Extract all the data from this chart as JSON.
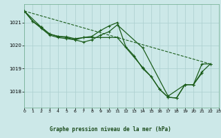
{
  "background_color": "#cce8e8",
  "plot_bg_color": "#cce8e8",
  "grid_color": "#aacece",
  "line_color": "#1a5c1a",
  "title": "Graphe pression niveau de la mer (hPa)",
  "xlim": [
    0,
    23
  ],
  "ylim": [
    1017.3,
    1021.8
  ],
  "yticks": [
    1018,
    1019,
    1020,
    1021
  ],
  "xticks": [
    0,
    1,
    2,
    3,
    4,
    5,
    6,
    7,
    8,
    9,
    10,
    11,
    12,
    13,
    14,
    15,
    16,
    17,
    18,
    19,
    20,
    21,
    22,
    23
  ],
  "series": [
    {
      "x": [
        0,
        22
      ],
      "y": [
        1021.5,
        1019.2
      ],
      "marker": false,
      "style": "--",
      "lw": 0.8
    },
    {
      "x": [
        0,
        1,
        2,
        3,
        4,
        5,
        6,
        7,
        8,
        9,
        10,
        11,
        12,
        13,
        14,
        15,
        16,
        17,
        18,
        19,
        20,
        21
      ],
      "y": [
        1021.5,
        1021.05,
        1020.75,
        1020.45,
        1020.35,
        1020.3,
        1020.25,
        1020.35,
        1020.4,
        1020.65,
        1020.85,
        1021.0,
        1019.95,
        1019.55,
        1019.0,
        1018.65,
        1018.1,
        1017.75,
        1017.72,
        1018.3,
        1018.3,
        1018.8
      ],
      "marker": true,
      "style": "-",
      "lw": 0.9
    },
    {
      "x": [
        0,
        1,
        2,
        3,
        4,
        5,
        6,
        7,
        8,
        9,
        10,
        11,
        14,
        17,
        19,
        20,
        21,
        22
      ],
      "y": [
        1021.5,
        1021.05,
        1020.8,
        1020.5,
        1020.4,
        1020.35,
        1020.25,
        1020.15,
        1020.25,
        1020.45,
        1020.6,
        1020.9,
        1019.9,
        1017.8,
        1018.3,
        1018.3,
        1018.85,
        1019.2
      ],
      "marker": true,
      "style": "-",
      "lw": 0.9
    },
    {
      "x": [
        0,
        2,
        3,
        4,
        5,
        6,
        7,
        8,
        9,
        10,
        11,
        14,
        15,
        16,
        17,
        18,
        19,
        20,
        21,
        22
      ],
      "y": [
        1021.5,
        1020.8,
        1020.5,
        1020.4,
        1020.38,
        1020.3,
        1020.35,
        1020.35,
        1020.35,
        1020.35,
        1020.35,
        1019.05,
        1018.65,
        1018.1,
        1017.75,
        1017.72,
        1018.3,
        1018.3,
        1019.2,
        1019.2
      ],
      "marker": true,
      "style": "-",
      "lw": 0.9
    }
  ]
}
